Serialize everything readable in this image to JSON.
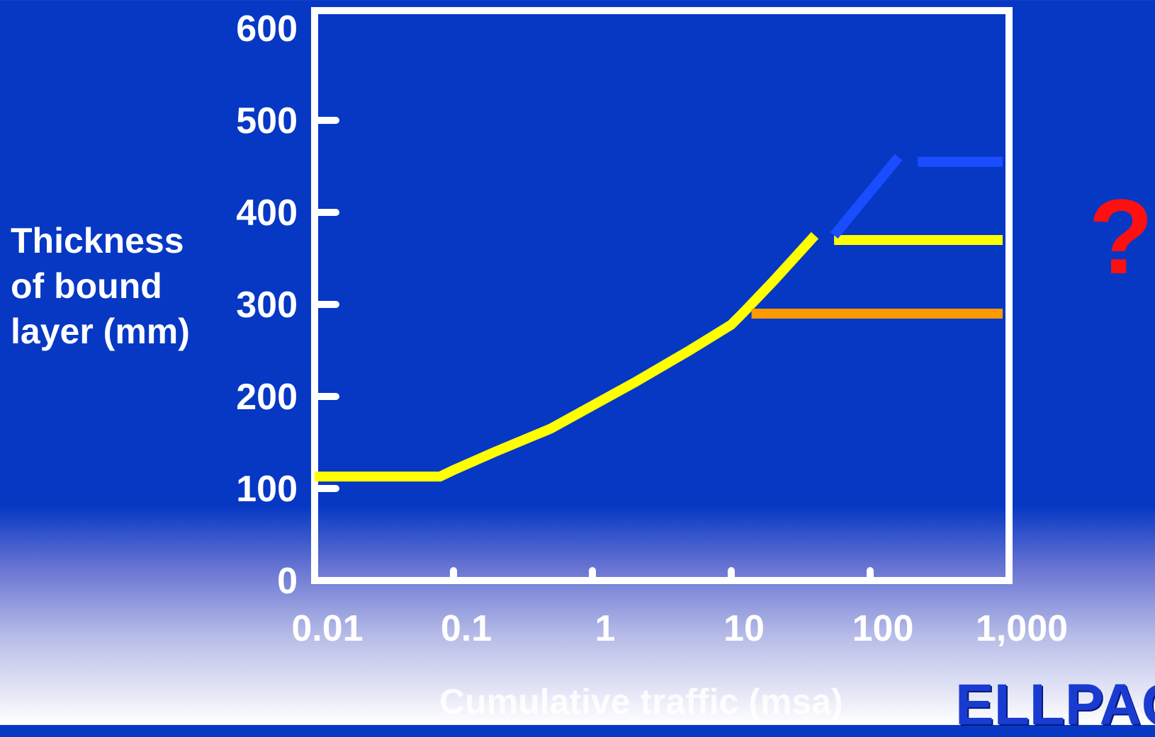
{
  "chart_data": {
    "type": "line",
    "xscale": "log",
    "xlim": [
      0.01,
      1000
    ],
    "ylim": [
      0,
      600
    ],
    "xticks": [
      0.01,
      0.1,
      1,
      10,
      100,
      1000
    ],
    "xtick_labels": [
      "0.01",
      "0.1",
      "1",
      "10",
      "100",
      "1,000"
    ],
    "yticks": [
      0,
      100,
      200,
      300,
      400,
      500,
      600
    ],
    "ytick_labels": [
      "0",
      "100",
      "200",
      "300",
      "400",
      "500",
      "600"
    ],
    "xlabel": "Cumulative traffic (msa)",
    "ylabel": "Thickness\nof bound\nlayer (mm)",
    "grid": false,
    "series": [
      {
        "color": "#ffff00",
        "x": [
          0.01,
          0.08,
          0.1,
          0.2,
          0.5,
          1,
          2,
          5,
          10,
          12,
          20,
          40
        ],
        "y": [
          113,
          113,
          120,
          140,
          165,
          190,
          215,
          250,
          278,
          290,
          325,
          375
        ]
      },
      {
        "color": "#ffff00",
        "x": [
          55,
          900
        ],
        "y": [
          370,
          370
        ]
      },
      {
        "color": "#ff9900",
        "x": [
          14,
          900
        ],
        "y": [
          290,
          290
        ]
      },
      {
        "color": "#1a4dff",
        "x": [
          55,
          160
        ],
        "y": [
          375,
          460
        ]
      },
      {
        "color": "#1a4dff",
        "x": [
          220,
          900
        ],
        "y": [
          455,
          455
        ]
      }
    ]
  },
  "annotation": {
    "question_mark": "?"
  },
  "brand": {
    "text": "ELLPAG"
  }
}
